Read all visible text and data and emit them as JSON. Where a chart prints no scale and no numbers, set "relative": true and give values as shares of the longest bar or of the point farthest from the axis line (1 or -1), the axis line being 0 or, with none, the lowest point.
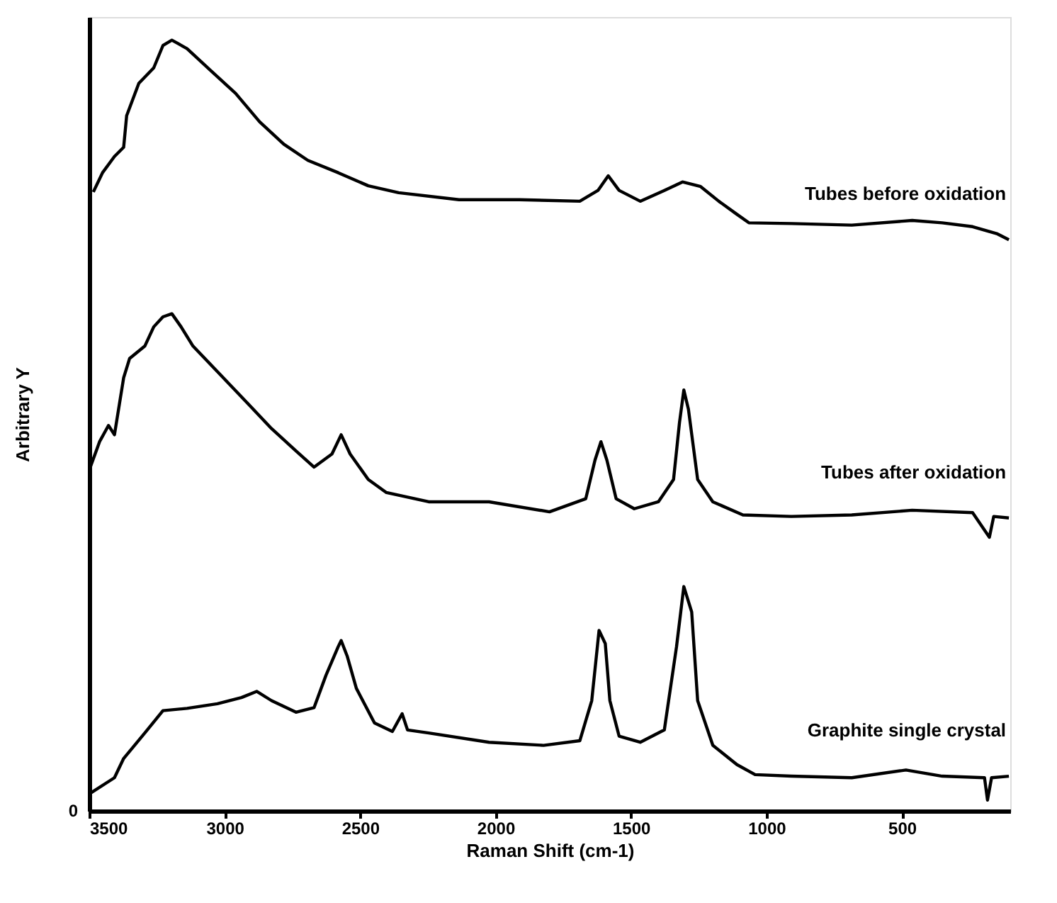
{
  "chart_data": {
    "type": "line",
    "xlabel": "Raman Shift (cm-1)",
    "ylabel": "Arbitrary Y",
    "relative": true,
    "annotations": [
      "0"
    ],
    "xlim": [
      3500,
      100
    ],
    "xticks": [
      {
        "value": 3500,
        "label": "3500"
      },
      {
        "value": 3000,
        "label": "3000"
      },
      {
        "value": 2500,
        "label": "2500"
      },
      {
        "value": 2000,
        "label": "2000"
      },
      {
        "value": 1500,
        "label": "1500"
      },
      {
        "value": 1000,
        "label": "1000"
      },
      500
    ],
    "grid": false,
    "marker": "none",
    "line_style": "solid",
    "series": [
      {
        "name": "Tubes before oxidation",
        "color": "#000000",
        "x": [
          3485,
          3451,
          3407,
          3373,
          3362,
          3317,
          3262,
          3228,
          3195,
          3139,
          3050,
          2960,
          2871,
          2782,
          2693,
          2581,
          2470,
          2358,
          2135,
          1912,
          1689,
          1622,
          1584,
          1544,
          1466,
          1377,
          1310,
          1243,
          1176,
          1109,
          1065,
          908,
          685,
          462,
          351,
          239,
          150,
          105
        ],
        "values": [
          0.803,
          0.828,
          0.849,
          0.861,
          0.902,
          0.944,
          0.964,
          0.993,
          1.0,
          0.989,
          0.96,
          0.931,
          0.894,
          0.865,
          0.844,
          0.828,
          0.811,
          0.802,
          0.793,
          0.793,
          0.791,
          0.805,
          0.824,
          0.805,
          0.791,
          0.805,
          0.816,
          0.81,
          0.791,
          0.774,
          0.763,
          0.762,
          0.76,
          0.766,
          0.763,
          0.758,
          0.749,
          0.741
        ]
      },
      {
        "name": "Tubes after oxidation",
        "color": "#000000",
        "x": [
          3496,
          3462,
          3429,
          3407,
          3373,
          3351,
          3295,
          3262,
          3228,
          3195,
          3161,
          3117,
          3027,
          2916,
          2827,
          2737,
          2670,
          2604,
          2570,
          2537,
          2470,
          2403,
          2247,
          2024,
          1801,
          1667,
          1633,
          1611,
          1589,
          1555,
          1488,
          1399,
          1343,
          1321,
          1305,
          1288,
          1254,
          1198,
          1087,
          908,
          685,
          462,
          239,
          177,
          161,
          105
        ],
        "values": [
          0.446,
          0.479,
          0.5,
          0.488,
          0.562,
          0.587,
          0.603,
          0.628,
          0.641,
          0.645,
          0.628,
          0.603,
          0.57,
          0.529,
          0.496,
          0.467,
          0.446,
          0.463,
          0.488,
          0.463,
          0.43,
          0.413,
          0.401,
          0.401,
          0.388,
          0.405,
          0.455,
          0.479,
          0.455,
          0.405,
          0.392,
          0.401,
          0.43,
          0.504,
          0.546,
          0.521,
          0.43,
          0.401,
          0.384,
          0.382,
          0.384,
          0.39,
          0.387,
          0.355,
          0.382,
          0.38
        ]
      },
      {
        "name": "Graphite single crystal",
        "color": "#000000",
        "x": [
          3500,
          3407,
          3373,
          3295,
          3228,
          3139,
          3027,
          2938,
          2882,
          2827,
          2737,
          2670,
          2626,
          2581,
          2570,
          2548,
          2514,
          2447,
          2381,
          2345,
          2325,
          2247,
          2024,
          1823,
          1689,
          1645,
          1618,
          1595,
          1578,
          1544,
          1466,
          1377,
          1332,
          1305,
          1276,
          1254,
          1198,
          1109,
          1042,
          908,
          685,
          485,
          351,
          195,
          184,
          169,
          105
        ],
        "values": [
          0.022,
          0.043,
          0.068,
          0.101,
          0.13,
          0.133,
          0.139,
          0.147,
          0.155,
          0.143,
          0.128,
          0.134,
          0.176,
          0.213,
          0.221,
          0.201,
          0.159,
          0.114,
          0.103,
          0.126,
          0.105,
          0.101,
          0.089,
          0.085,
          0.091,
          0.143,
          0.234,
          0.217,
          0.143,
          0.097,
          0.089,
          0.105,
          0.213,
          0.291,
          0.258,
          0.143,
          0.085,
          0.06,
          0.047,
          0.045,
          0.043,
          0.053,
          0.045,
          0.043,
          0.014,
          0.043,
          0.045
        ]
      }
    ]
  }
}
